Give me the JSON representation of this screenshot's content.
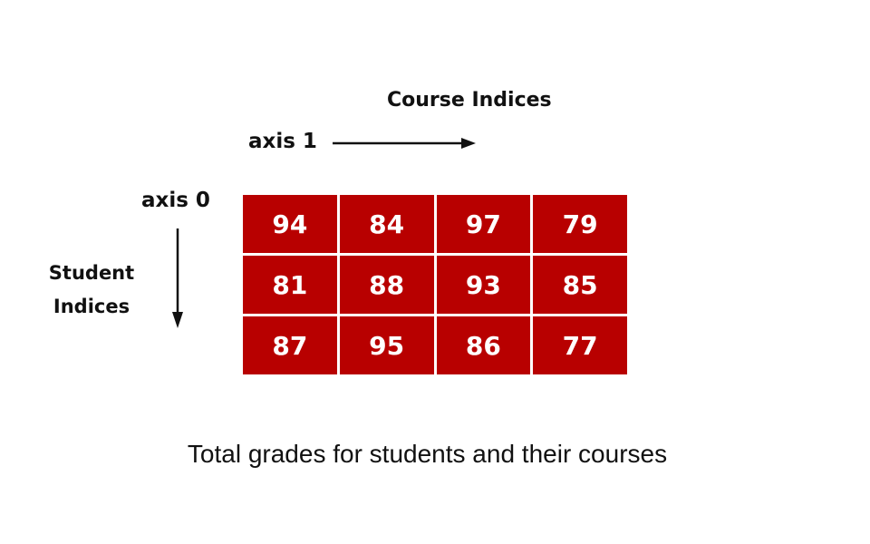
{
  "course_axis": {
    "title": "Course Indices",
    "label": "axis 1"
  },
  "student_axis": {
    "title_line1": "Student",
    "title_line2": "Indices",
    "label": "axis 0"
  },
  "grades": [
    [
      "94",
      "84",
      "97",
      "79"
    ],
    [
      "81",
      "88",
      "93",
      "85"
    ],
    [
      "87",
      "95",
      "86",
      "77"
    ]
  ],
  "caption": "Total grades for students and their courses",
  "colors": {
    "cell_fill": "#b80000",
    "cell_text": "#ffffff",
    "arrow": "#111111"
  }
}
